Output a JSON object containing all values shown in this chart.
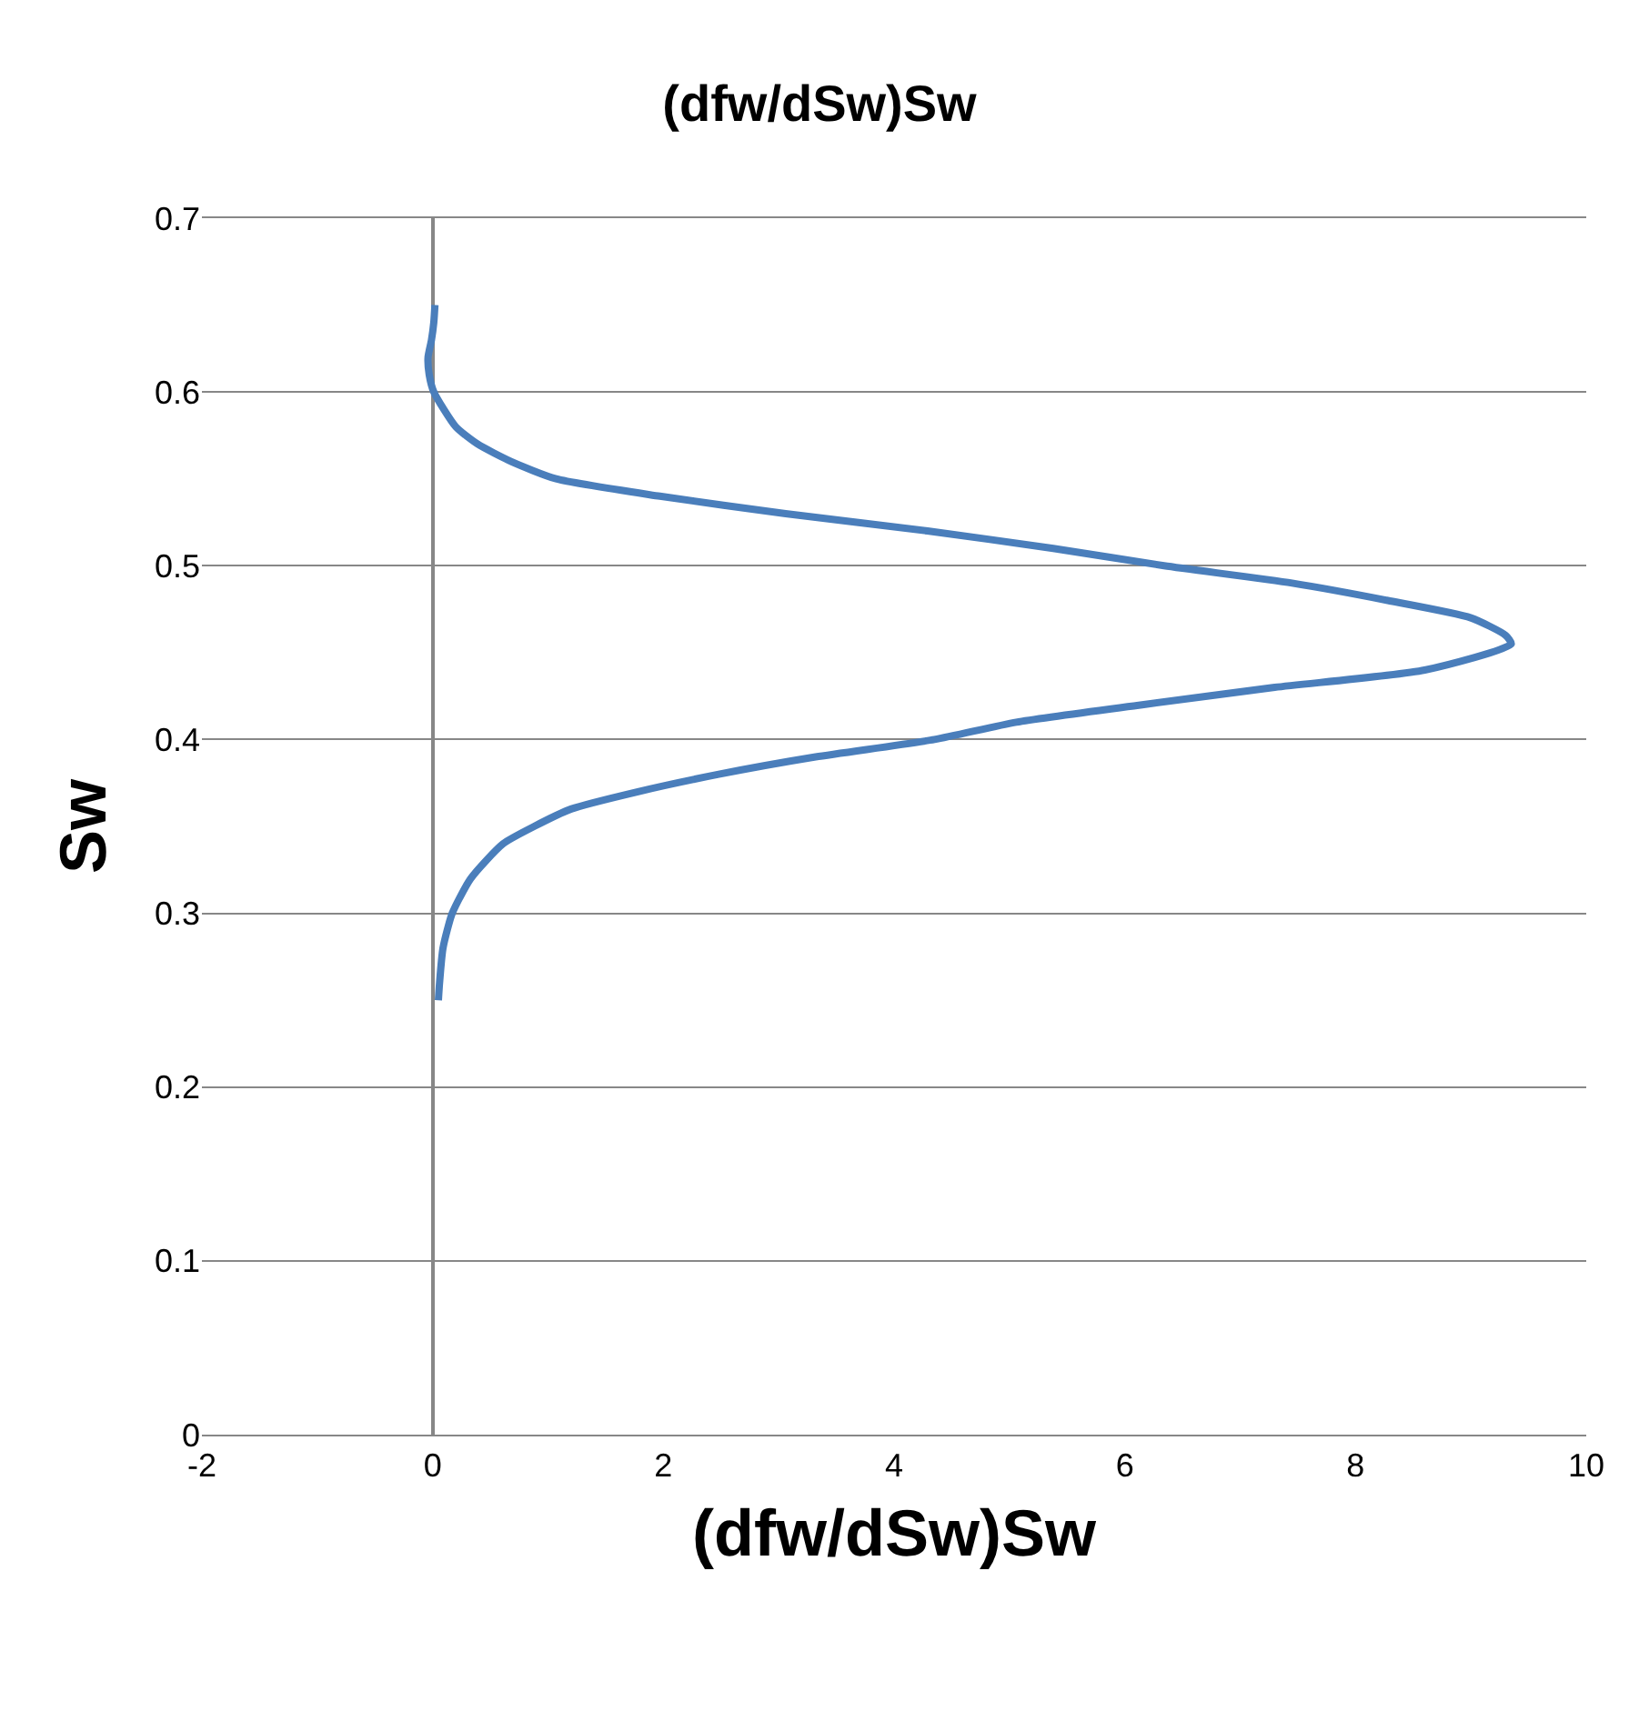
{
  "chart_data": {
    "type": "line",
    "title": "(dfw/dSw)Sw",
    "xlabel": "(dfw/dSw)Sw",
    "ylabel": "Sw",
    "x": [
      0.05,
      0.06,
      0.09,
      0.17,
      0.33,
      0.61,
      0.88,
      1.2,
      1.78,
      2.48,
      3.32,
      4.35,
      5.06,
      6.15,
      7.3,
      8.6,
      9.35,
      9.3,
      9.0,
      8.28,
      7.45,
      6.34,
      5.38,
      4.29,
      3.06,
      1.97,
      1.07,
      0.68,
      0.39,
      0.2,
      0.01,
      -0.03,
      -0.04,
      -0.01,
      0.01,
      0.02
    ],
    "series": [
      {
        "color": "#4a7ebb",
        "values": [
          0.25,
          0.26,
          0.28,
          0.3,
          0.32,
          0.34,
          0.35,
          0.36,
          0.37,
          0.38,
          0.39,
          0.4,
          0.41,
          0.42,
          0.43,
          0.44,
          0.455,
          0.46,
          0.47,
          0.48,
          0.49,
          0.5,
          0.51,
          0.52,
          0.53,
          0.54,
          0.55,
          0.56,
          0.57,
          0.58,
          0.6,
          0.61,
          0.62,
          0.63,
          0.64,
          0.65
        ]
      }
    ],
    "xlim": [
      -2,
      10
    ],
    "xticks": [
      -2,
      0,
      2,
      4,
      6,
      8,
      10
    ],
    "ylim": [
      0,
      0.7
    ],
    "yticks": [
      0,
      0.1,
      0.2,
      0.3,
      0.4,
      0.5,
      0.6,
      0.7
    ],
    "grid": "y",
    "marker": "none",
    "line_style": "solid"
  }
}
